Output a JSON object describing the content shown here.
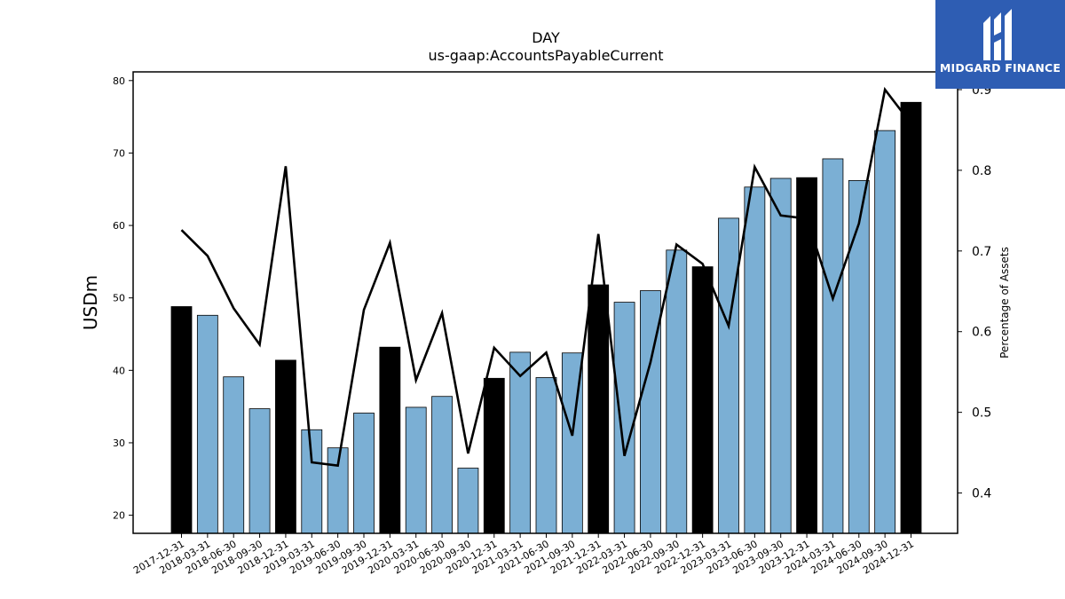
{
  "brand": {
    "name": "MIDGARD FINANCE"
  },
  "colors": {
    "quarter_bar": "#7bafd4",
    "year_end_bar": "#000000",
    "line": "#000000"
  },
  "chart_data": {
    "type": "bar",
    "title": "DAY",
    "subtitle": "us-gaap:AccountsPayableCurrent",
    "ylabel": "USDm",
    "y2label": "Percentage of Assets",
    "ylim": [
      17.5,
      81.2
    ],
    "y2lim": [
      0.35,
      0.922
    ],
    "yticks": [
      20,
      30,
      40,
      50,
      60,
      70,
      80
    ],
    "y2ticks": [
      0.4,
      0.5,
      0.6,
      0.7,
      0.8,
      0.9
    ],
    "categories": [
      "2017-12-31",
      "2018-03-31",
      "2018-06-30",
      "2018-09-30",
      "2018-12-31",
      "2019-03-31",
      "2019-06-30",
      "2019-09-30",
      "2019-12-31",
      "2020-03-31",
      "2020-06-30",
      "2020-09-30",
      "2020-12-31",
      "2021-03-31",
      "2021-06-30",
      "2021-09-30",
      "2021-12-31",
      "2022-03-31",
      "2022-06-30",
      "2022-09-30",
      "2022-12-31",
      "2023-03-31",
      "2023-06-30",
      "2023-09-30",
      "2023-12-31",
      "2024-03-31",
      "2024-06-30",
      "2024-09-30",
      "2024-12-31"
    ],
    "series": [
      {
        "type": "bar",
        "values": [
          48.8,
          47.6,
          39.1,
          34.7,
          41.4,
          31.8,
          29.3,
          34.1,
          43.2,
          34.9,
          36.4,
          26.5,
          38.9,
          42.5,
          39.0,
          42.4,
          51.8,
          49.4,
          51.0,
          56.6,
          54.3,
          61.0,
          65.3,
          66.5,
          66.6,
          69.2,
          66.2,
          73.1,
          77.0
        ],
        "year_end": [
          true,
          false,
          false,
          false,
          true,
          false,
          false,
          false,
          true,
          false,
          false,
          false,
          true,
          false,
          false,
          false,
          true,
          false,
          false,
          false,
          true,
          false,
          false,
          false,
          true,
          false,
          false,
          false,
          true
        ]
      },
      {
        "type": "line",
        "axis": "right",
        "values": [
          0.726,
          0.694,
          0.629,
          0.584,
          0.805,
          0.438,
          0.434,
          0.627,
          0.71,
          0.54,
          0.623,
          0.449,
          0.58,
          0.545,
          0.574,
          0.471,
          0.721,
          0.446,
          0.562,
          0.708,
          0.684,
          0.607,
          0.804,
          0.744,
          0.74,
          0.641,
          0.734,
          0.9,
          0.858
        ]
      }
    ]
  }
}
